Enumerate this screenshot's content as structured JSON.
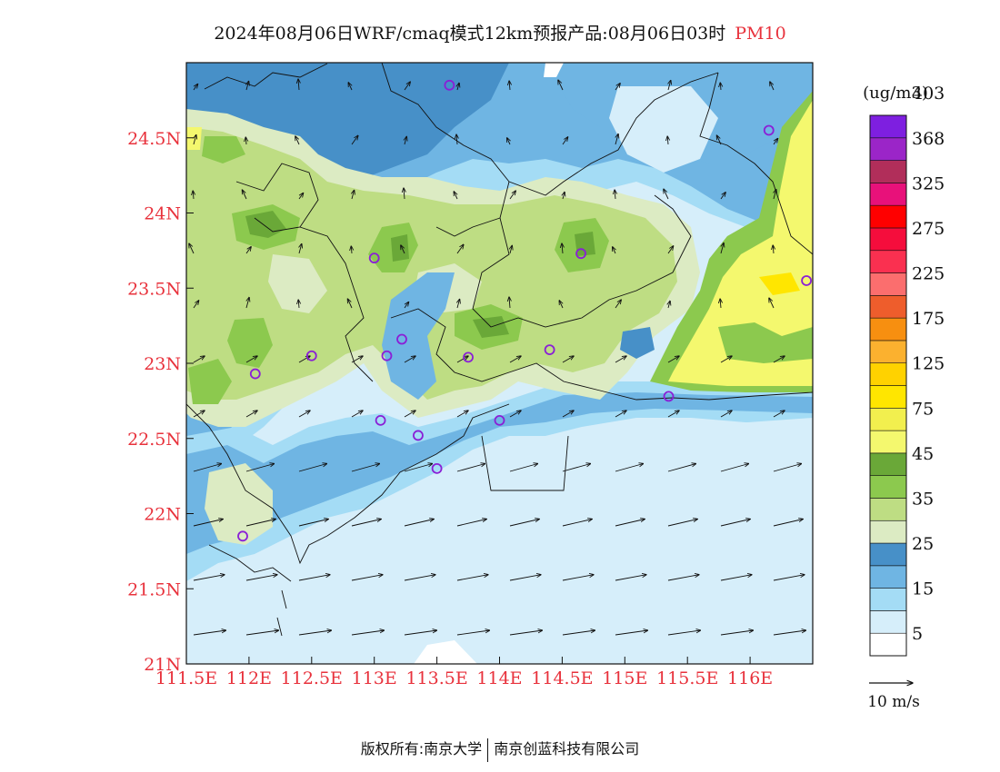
{
  "title": {
    "main": "2024年08月06日WRF/cmaq模式12km预报产品:08月06日03时",
    "variable": "PM10"
  },
  "axes": {
    "lon_ticks": [
      "111.5E",
      "112E",
      "112.5E",
      "113E",
      "113.5E",
      "114E",
      "114.5E",
      "115E",
      "115.5E",
      "116E"
    ],
    "lat_ticks": [
      "21N",
      "21.5N",
      "22N",
      "22.5N",
      "23N",
      "23.5N",
      "24N",
      "24.5N"
    ],
    "lon_range": [
      111.5,
      116.5
    ],
    "lat_range": [
      21,
      25
    ],
    "label_color": "#e8323c"
  },
  "legend": {
    "unit": "(ug/m3)",
    "labels": [
      "5",
      "15",
      "25",
      "35",
      "45",
      "75",
      "125",
      "175",
      "225",
      "275",
      "325",
      "368",
      "403"
    ],
    "colors": [
      "#ffffff",
      "#d6eefa",
      "#a4dcf5",
      "#6fb5e3",
      "#4790c8",
      "#dcebc3",
      "#bedd83",
      "#8cc94e",
      "#6aa838",
      "#f4f86e",
      "#f2ef4e",
      "#ffe600",
      "#ffd200",
      "#fbb12f",
      "#f78f10",
      "#ee5d2c",
      "#fb6e6e",
      "#fa3050",
      "#f50d3c",
      "#ff0000",
      "#e8117a",
      "#b12e5a",
      "#9b25c8",
      "#7e1fe0"
    ]
  },
  "wind_reference": {
    "label": "10 m/s"
  },
  "stations": [
    {
      "lon": 113.6,
      "lat": 24.85
    },
    {
      "lon": 116.15,
      "lat": 24.55
    },
    {
      "lon": 113.0,
      "lat": 23.7
    },
    {
      "lon": 114.65,
      "lat": 23.73
    },
    {
      "lon": 116.45,
      "lat": 23.55
    },
    {
      "lon": 112.5,
      "lat": 23.05
    },
    {
      "lon": 112.05,
      "lat": 22.93
    },
    {
      "lon": 113.1,
      "lat": 23.05
    },
    {
      "lon": 113.22,
      "lat": 23.16
    },
    {
      "lon": 113.75,
      "lat": 23.04
    },
    {
      "lon": 114.4,
      "lat": 23.09
    },
    {
      "lon": 113.05,
      "lat": 22.62
    },
    {
      "lon": 113.35,
      "lat": 22.52
    },
    {
      "lon": 114.0,
      "lat": 22.62
    },
    {
      "lon": 113.5,
      "lat": 22.3
    },
    {
      "lon": 115.35,
      "lat": 22.78
    },
    {
      "lon": 111.95,
      "lat": 21.85
    }
  ],
  "footer": {
    "left": "版权所有:南京大学",
    "right": "南京创蓝科技有限公司"
  }
}
